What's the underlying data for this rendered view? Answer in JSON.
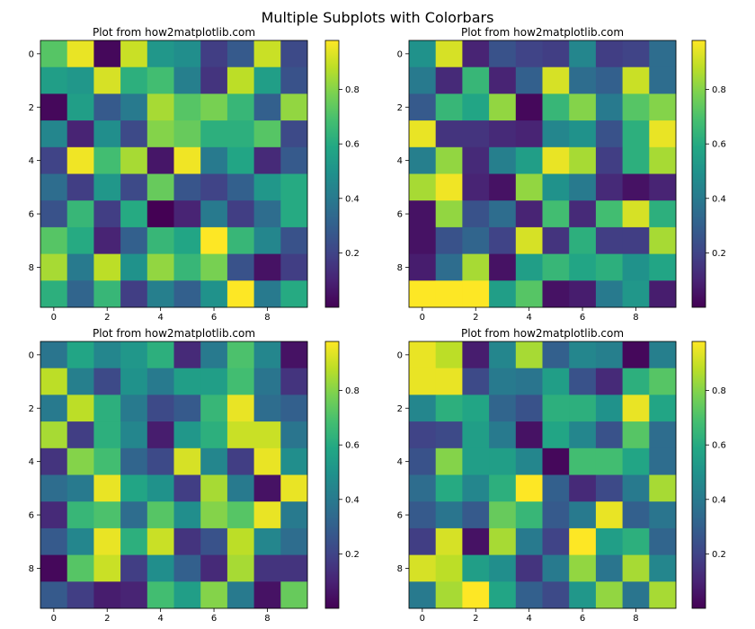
{
  "figure": {
    "suptitle": "Multiple Subplots with Colorbars"
  },
  "chart_data": [
    {
      "type": "heatmap",
      "title": "Plot from how2matplotlib.com",
      "x_ticks": [
        0,
        2,
        4,
        6,
        8
      ],
      "y_ticks": [
        0,
        2,
        4,
        6,
        8
      ],
      "colorbar_ticks": [
        0.2,
        0.4,
        0.6,
        0.8
      ],
      "colormap": "viridis",
      "vmin": 0.0,
      "vmax": 0.98,
      "values": [
        [
          0.72,
          0.95,
          0.02,
          0.9,
          0.52,
          0.48,
          0.18,
          0.28,
          0.9,
          0.22
        ],
        [
          0.55,
          0.52,
          0.92,
          0.62,
          0.68,
          0.42,
          0.15,
          0.88,
          0.55,
          0.25
        ],
        [
          0.02,
          0.55,
          0.28,
          0.4,
          0.85,
          0.72,
          0.78,
          0.65,
          0.3,
          0.82
        ],
        [
          0.45,
          0.1,
          0.48,
          0.22,
          0.8,
          0.75,
          0.62,
          0.62,
          0.72,
          0.22
        ],
        [
          0.2,
          0.96,
          0.68,
          0.85,
          0.06,
          0.96,
          0.4,
          0.58,
          0.12,
          0.28
        ],
        [
          0.35,
          0.18,
          0.52,
          0.22,
          0.75,
          0.26,
          0.2,
          0.3,
          0.52,
          0.6
        ],
        [
          0.25,
          0.65,
          0.18,
          0.6,
          0.0,
          0.1,
          0.4,
          0.18,
          0.35,
          0.6
        ],
        [
          0.72,
          0.6,
          0.1,
          0.3,
          0.65,
          0.58,
          0.98,
          0.65,
          0.45,
          0.25
        ],
        [
          0.85,
          0.4,
          0.88,
          0.5,
          0.82,
          0.65,
          0.78,
          0.25,
          0.05,
          0.18
        ],
        [
          0.62,
          0.32,
          0.65,
          0.18,
          0.42,
          0.3,
          0.5,
          0.98,
          0.4,
          0.6
        ]
      ]
    },
    {
      "type": "heatmap",
      "title": "Plot from how2matplotlib.com",
      "x_ticks": [
        0,
        2,
        4,
        6,
        8
      ],
      "y_ticks": [
        0,
        2,
        4,
        6,
        8
      ],
      "colorbar_ticks": [
        0.2,
        0.4,
        0.6,
        0.8
      ],
      "colormap": "viridis",
      "vmin": 0.0,
      "vmax": 0.98,
      "values": [
        [
          0.5,
          0.92,
          0.1,
          0.25,
          0.2,
          0.18,
          0.45,
          0.18,
          0.2,
          0.35
        ],
        [
          0.4,
          0.12,
          0.65,
          0.1,
          0.3,
          0.92,
          0.35,
          0.3,
          0.9,
          0.35
        ],
        [
          0.28,
          0.65,
          0.58,
          0.82,
          0.02,
          0.65,
          0.8,
          0.4,
          0.72,
          0.8
        ],
        [
          0.95,
          0.15,
          0.15,
          0.12,
          0.1,
          0.45,
          0.5,
          0.25,
          0.62,
          0.95
        ],
        [
          0.42,
          0.82,
          0.12,
          0.42,
          0.55,
          0.95,
          0.85,
          0.18,
          0.62,
          0.85
        ],
        [
          0.85,
          0.96,
          0.1,
          0.05,
          0.82,
          0.5,
          0.4,
          0.12,
          0.05,
          0.1
        ],
        [
          0.05,
          0.82,
          0.25,
          0.35,
          0.1,
          0.68,
          0.12,
          0.68,
          0.92,
          0.62
        ],
        [
          0.05,
          0.25,
          0.32,
          0.2,
          0.92,
          0.15,
          0.62,
          0.18,
          0.18,
          0.85
        ],
        [
          0.08,
          0.35,
          0.85,
          0.05,
          0.55,
          0.65,
          0.58,
          0.62,
          0.5,
          0.58
        ],
        [
          0.98,
          0.98,
          0.98,
          0.55,
          0.72,
          0.05,
          0.08,
          0.4,
          0.52,
          0.08
        ]
      ]
    },
    {
      "type": "heatmap",
      "title": "Plot from how2matplotlib.com",
      "x_ticks": [
        0,
        2,
        4,
        6,
        8
      ],
      "y_ticks": [
        0,
        2,
        4,
        6,
        8
      ],
      "colorbar_ticks": [
        0.2,
        0.4,
        0.6,
        0.8
      ],
      "colormap": "viridis",
      "vmin": 0.0,
      "vmax": 0.98,
      "values": [
        [
          0.38,
          0.58,
          0.45,
          0.52,
          0.62,
          0.12,
          0.4,
          0.7,
          0.45,
          0.05
        ],
        [
          0.88,
          0.42,
          0.22,
          0.5,
          0.4,
          0.55,
          0.55,
          0.68,
          0.38,
          0.15
        ],
        [
          0.4,
          0.88,
          0.62,
          0.4,
          0.22,
          0.28,
          0.65,
          0.95,
          0.35,
          0.3
        ],
        [
          0.85,
          0.18,
          0.62,
          0.45,
          0.08,
          0.52,
          0.62,
          0.9,
          0.9,
          0.38
        ],
        [
          0.15,
          0.8,
          0.68,
          0.32,
          0.22,
          0.92,
          0.45,
          0.18,
          0.95,
          0.48
        ],
        [
          0.35,
          0.4,
          0.95,
          0.58,
          0.5,
          0.18,
          0.85,
          0.4,
          0.05,
          0.95
        ],
        [
          0.12,
          0.65,
          0.7,
          0.35,
          0.72,
          0.48,
          0.8,
          0.72,
          0.95,
          0.4
        ],
        [
          0.28,
          0.45,
          0.95,
          0.62,
          0.9,
          0.15,
          0.25,
          0.88,
          0.45,
          0.35
        ],
        [
          0.02,
          0.72,
          0.9,
          0.18,
          0.48,
          0.3,
          0.12,
          0.85,
          0.15,
          0.15
        ],
        [
          0.28,
          0.18,
          0.08,
          0.1,
          0.68,
          0.55,
          0.8,
          0.4,
          0.05,
          0.75
        ]
      ]
    },
    {
      "type": "heatmap",
      "title": "Plot from how2matplotlib.com",
      "x_ticks": [
        0,
        2,
        4,
        6,
        8
      ],
      "y_ticks": [
        0,
        2,
        4,
        6,
        8
      ],
      "colorbar_ticks": [
        0.2,
        0.4,
        0.6,
        0.8
      ],
      "colormap": "viridis",
      "vmin": 0.0,
      "vmax": 0.98,
      "values": [
        [
          0.95,
          0.88,
          0.08,
          0.45,
          0.85,
          0.3,
          0.45,
          0.42,
          0.02,
          0.42
        ],
        [
          0.95,
          0.95,
          0.22,
          0.4,
          0.38,
          0.55,
          0.25,
          0.12,
          0.62,
          0.72
        ],
        [
          0.45,
          0.62,
          0.58,
          0.32,
          0.25,
          0.62,
          0.62,
          0.5,
          0.95,
          0.58
        ],
        [
          0.2,
          0.22,
          0.55,
          0.4,
          0.05,
          0.58,
          0.45,
          0.25,
          0.72,
          0.35
        ],
        [
          0.25,
          0.8,
          0.55,
          0.55,
          0.45,
          0.02,
          0.68,
          0.68,
          0.58,
          0.35
        ],
        [
          0.35,
          0.6,
          0.45,
          0.62,
          0.98,
          0.3,
          0.12,
          0.22,
          0.4,
          0.85
        ],
        [
          0.28,
          0.38,
          0.28,
          0.75,
          0.65,
          0.28,
          0.4,
          0.95,
          0.3,
          0.38
        ],
        [
          0.18,
          0.92,
          0.05,
          0.85,
          0.4,
          0.2,
          0.98,
          0.55,
          0.62,
          0.32
        ],
        [
          0.92,
          0.88,
          0.55,
          0.48,
          0.15,
          0.4,
          0.82,
          0.38,
          0.85,
          0.45
        ],
        [
          0.4,
          0.85,
          0.98,
          0.58,
          0.3,
          0.22,
          0.52,
          0.82,
          0.38,
          0.85
        ]
      ]
    }
  ]
}
